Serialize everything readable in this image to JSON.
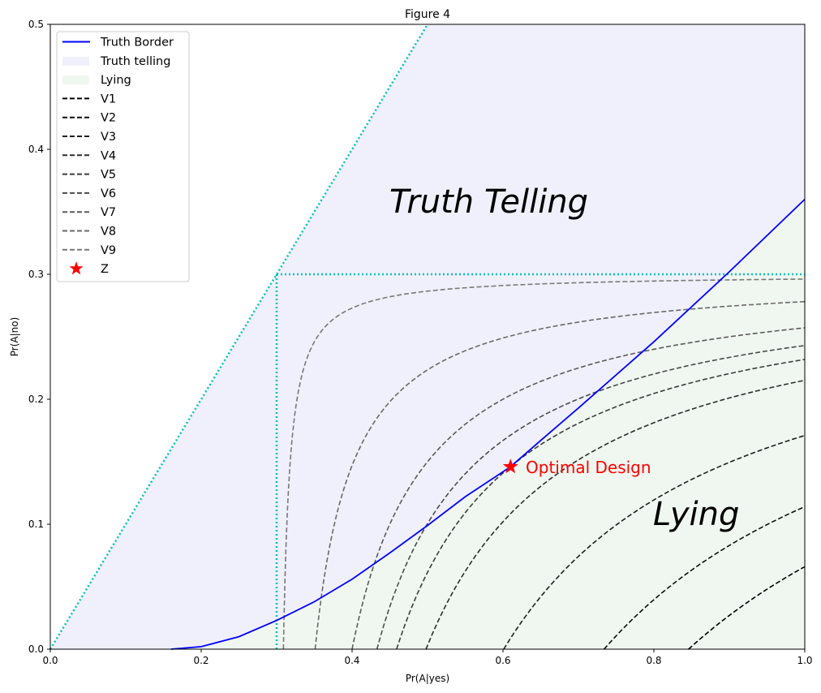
{
  "chart_data": {
    "type": "line",
    "title": "Figure 4",
    "xlabel": "Pr(A|yes)",
    "ylabel": "Pr(A|no)",
    "xlim": [
      0,
      1
    ],
    "ylim": [
      0,
      0.5
    ],
    "xticks": [
      "0.0",
      "0.2",
      "0.4",
      "0.6",
      "0.8",
      "1.0"
    ],
    "yticks": [
      "0.0",
      "0.1",
      "0.2",
      "0.3",
      "0.4",
      "0.5"
    ],
    "grid": false,
    "legend_position": "top-left",
    "truth_border": {
      "name": "Truth Border",
      "color": "#0000ff",
      "x": [
        0.16,
        0.2,
        0.25,
        0.3,
        0.35,
        0.4,
        0.45,
        0.5,
        0.55,
        0.61,
        0.65,
        0.7,
        0.8,
        0.9,
        1.0
      ],
      "y": [
        0,
        0.002,
        0.01,
        0.023,
        0.038,
        0.056,
        0.077,
        0.099,
        0.122,
        0.146,
        0.167,
        0.193,
        0.246,
        0.302,
        0.36
      ]
    },
    "regions": [
      {
        "name": "Truth telling",
        "color": "#f0f0fc"
      },
      {
        "name": "Lying",
        "color": "#f0f7f0"
      }
    ],
    "bounds": {
      "color": "#00bfbf",
      "diagonal": {
        "x": [
          0,
          0.5
        ],
        "y": [
          0,
          0.5
        ]
      },
      "vertical": {
        "x": [
          0.3,
          0.3
        ],
        "y": [
          0,
          0.3
        ]
      },
      "horizontal": {
        "x": [
          0.3,
          1.0
        ],
        "y": [
          0.3,
          0.3
        ]
      }
    },
    "series": [
      {
        "name": "V1",
        "color": "#000000",
        "x_at_y0": 0.846,
        "y_at_x1": 0.066
      },
      {
        "name": "V2",
        "color": "#0f0f0f",
        "x_at_y0": 0.734,
        "y_at_x1": 0.114
      },
      {
        "name": "V3",
        "color": "#1e1e1e",
        "x_at_y0": 0.601,
        "y_at_x1": 0.171
      },
      {
        "name": "V4",
        "color": "#2d2d2d",
        "x_at_y0": 0.498,
        "y_at_x1": 0.215
      },
      {
        "name": "V5",
        "color": "#3c3c3c",
        "x_at_y0": 0.459,
        "y_at_x1": 0.232
      },
      {
        "name": "V6",
        "color": "#4b4b4b",
        "x_at_y0": 0.433,
        "y_at_x1": 0.243
      },
      {
        "name": "V7",
        "color": "#5a5a5a",
        "x_at_y0": 0.4,
        "y_at_x1": 0.257
      },
      {
        "name": "V8",
        "color": "#696969",
        "x_at_y0": 0.351,
        "y_at_x1": 0.278
      },
      {
        "name": "V9",
        "color": "#787878",
        "x_at_y0": 0.309,
        "y_at_x1": 0.296
      }
    ],
    "point": {
      "name": "Z",
      "x": 0.61,
      "y": 0.146,
      "color": "#ff0000",
      "annotation": "Optimal Design"
    },
    "annotations": [
      {
        "text": "Truth Telling",
        "x": 0.45,
        "y": 0.35
      },
      {
        "text": "Lying",
        "x": 0.8,
        "y": 0.1
      }
    ]
  }
}
